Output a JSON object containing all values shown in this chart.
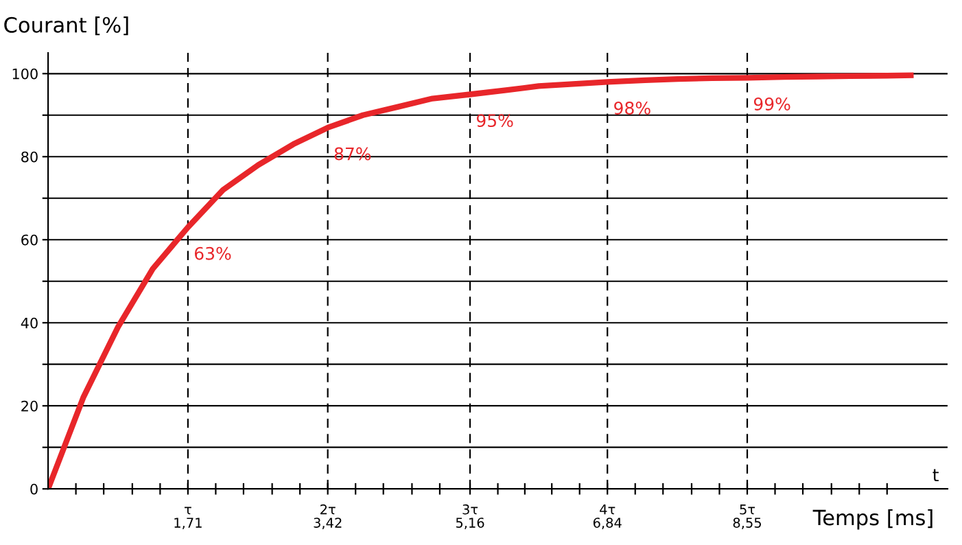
{
  "chart_data": {
    "type": "line",
    "ylabel": "Courant [%]",
    "xlabel": "Temps [ms]",
    "series": [
      {
        "color": "#e8262a",
        "x": [
          0,
          0.43,
          0.855,
          1.28,
          1.71,
          2.14,
          2.57,
          3.0,
          3.42,
          3.85,
          4.28,
          4.7,
          5.16,
          5.6,
          6.0,
          6.42,
          6.84,
          7.3,
          7.7,
          8.12,
          8.55,
          9.0,
          9.4,
          9.8,
          10.26,
          10.55
        ],
        "values": [
          0,
          22,
          39,
          53,
          63,
          72,
          78,
          83,
          87,
          90,
          92,
          94,
          95,
          96,
          97,
          97.5,
          98,
          98.4,
          98.7,
          98.9,
          99,
          99.2,
          99.3,
          99.4,
          99.5,
          99.6
        ]
      }
    ],
    "xlim": [
      0,
      11.0
    ],
    "ylim": [
      0,
      105
    ],
    "xticks": [
      {
        "value": 0.34,
        "label": null
      },
      {
        "value": 0.68,
        "label": null
      },
      {
        "value": 1.03,
        "label": null
      },
      {
        "value": 1.37,
        "label": null
      },
      {
        "value": 1.71,
        "label": "1,71"
      },
      {
        "value": 2.05,
        "label": null
      },
      {
        "value": 2.39,
        "label": null
      },
      {
        "value": 2.74,
        "label": null
      },
      {
        "value": 3.08,
        "label": null
      },
      {
        "value": 3.42,
        "label": "3,42"
      },
      {
        "value": 3.76,
        "label": null
      },
      {
        "value": 4.1,
        "label": null
      },
      {
        "value": 4.45,
        "label": null
      },
      {
        "value": 4.79,
        "label": null
      },
      {
        "value": 5.16,
        "label": "5,16"
      },
      {
        "value": 5.5,
        "label": null
      },
      {
        "value": 5.83,
        "label": null
      },
      {
        "value": 6.16,
        "label": null
      },
      {
        "value": 6.5,
        "label": null
      },
      {
        "value": 6.84,
        "label": "6,84"
      },
      {
        "value": 7.18,
        "label": null
      },
      {
        "value": 7.52,
        "label": null
      },
      {
        "value": 7.87,
        "label": null
      },
      {
        "value": 8.21,
        "label": null
      },
      {
        "value": 8.55,
        "label": "8,55"
      },
      {
        "value": 8.89,
        "label": null
      },
      {
        "value": 9.23,
        "label": null
      },
      {
        "value": 9.58,
        "label": null
      },
      {
        "value": 9.92,
        "label": null
      },
      {
        "value": 10.26,
        "label": null
      }
    ],
    "yticks": [
      0,
      {
        "value": 10,
        "label": null
      },
      20,
      {
        "value": 30,
        "label": null
      },
      40,
      {
        "value": 50,
        "label": null
      },
      60,
      {
        "value": 70,
        "label": null
      },
      80,
      {
        "value": 90,
        "label": null
      },
      100
    ],
    "grid": "y",
    "legend": false,
    "marker": "none",
    "line_style": "solid",
    "ref_lines": [
      {
        "axis": "x",
        "value": 1.71,
        "label": "τ",
        "line_style": "dashed",
        "color": "#000000"
      },
      {
        "axis": "x",
        "value": 3.42,
        "label": "2τ",
        "line_style": "dashed",
        "color": "#000000"
      },
      {
        "axis": "x",
        "value": 5.16,
        "label": "3τ",
        "line_style": "dashed",
        "color": "#000000"
      },
      {
        "axis": "x",
        "value": 6.84,
        "label": "4τ",
        "line_style": "dashed",
        "color": "#000000"
      },
      {
        "axis": "x",
        "value": 8.55,
        "label": "5τ",
        "line_style": "dashed",
        "color": "#000000"
      }
    ],
    "annotations": [
      {
        "text": "63%",
        "x": 1.71,
        "y": 63
      },
      {
        "text": "87%",
        "x": 3.42,
        "y": 87
      },
      {
        "text": "95%",
        "x": 5.16,
        "y": 95
      },
      {
        "text": "98%",
        "x": 6.84,
        "y": 98
      },
      {
        "text": "99%",
        "x": 8.55,
        "y": 99
      },
      "t"
    ]
  }
}
